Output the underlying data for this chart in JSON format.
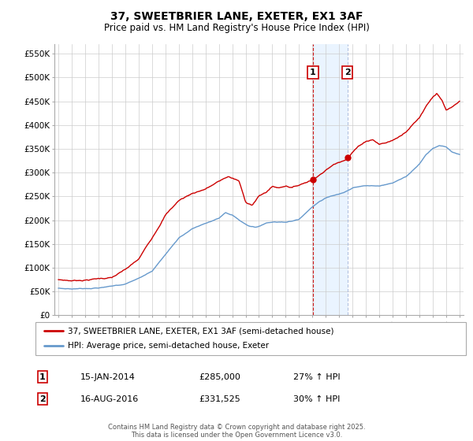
{
  "title": "37, SWEETBRIER LANE, EXETER, EX1 3AF",
  "subtitle": "Price paid vs. HM Land Registry's House Price Index (HPI)",
  "ylabel_ticks": [
    "£0",
    "£50K",
    "£100K",
    "£150K",
    "£200K",
    "£250K",
    "£300K",
    "£350K",
    "£400K",
    "£450K",
    "£500K",
    "£550K"
  ],
  "ylabel_values": [
    0,
    50000,
    100000,
    150000,
    200000,
    250000,
    300000,
    350000,
    400000,
    450000,
    500000,
    550000
  ],
  "xmin": 1994.7,
  "xmax": 2025.3,
  "ymin": 0,
  "ymax": 570000,
  "line1_color": "#cc0000",
  "line2_color": "#6699cc",
  "line1_label": "37, SWEETBRIER LANE, EXETER, EX1 3AF (semi-detached house)",
  "line2_label": "HPI: Average price, semi-detached house, Exeter",
  "marker1_date": 2014.04,
  "marker1_price": 285000,
  "marker1_label": "1",
  "marker2_date": 2016.62,
  "marker2_price": 331525,
  "marker2_label": "2",
  "footer": "Contains HM Land Registry data © Crown copyright and database right 2025.\nThis data is licensed under the Open Government Licence v3.0.",
  "bg_color": "#ffffff",
  "grid_color": "#cccccc",
  "shade_color": "#ddeeff",
  "vline1_color": "#cc0000",
  "vline2_color": "#aabbdd"
}
